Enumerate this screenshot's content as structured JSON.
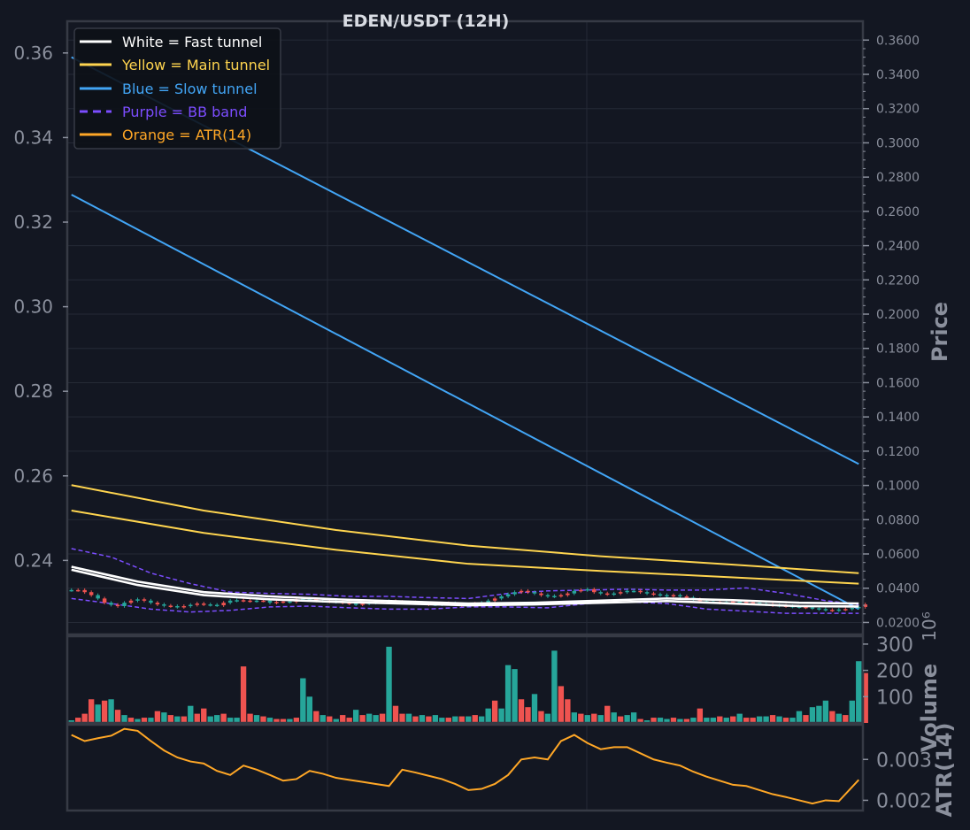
{
  "colors": {
    "background": "#131722",
    "panel_border": "#363a45",
    "grid": "#252a36",
    "tick_text": "#8a8f9c",
    "title_text": "#d9dce3",
    "up": "#26a69a",
    "down": "#ef5350",
    "fast": "#ffffff",
    "main": "#ffd54f",
    "slow": "#42a5f5",
    "bb": "#7c4dff",
    "atr": "#ffa726"
  },
  "chart_data": [
    {
      "type": "line",
      "panel": "price",
      "title": "EDEN/USDT (12H)",
      "ylabel": "Price",
      "left_ylim": [
        0.2225,
        0.3675
      ],
      "left_ticks": [
        "0.24",
        "0.26",
        "0.28",
        "0.30",
        "0.32",
        "0.34",
        "0.36"
      ],
      "right_ylim": [
        0.013,
        0.371
      ],
      "right_ticks": [
        "0.0200",
        "0.0400",
        "0.0600",
        "0.0800",
        "0.1000",
        "0.1200",
        "0.1400",
        "0.1600",
        "0.1800",
        "0.2000",
        "0.2200",
        "0.2400",
        "0.2600",
        "0.2800",
        "0.3000",
        "0.3200",
        "0.3400",
        "0.3600"
      ],
      "grid": true,
      "legend_position": "top-left",
      "legend": [
        {
          "label": "White = Fast tunnel",
          "color": "#ffffff",
          "style": "solid"
        },
        {
          "label": "Yellow = Main tunnel",
          "color": "#ffd54f",
          "style": "solid"
        },
        {
          "label": "Blue = Slow tunnel",
          "color": "#42a5f5",
          "style": "solid"
        },
        {
          "label": "Purple = BB band",
          "color": "#7c4dff",
          "style": "dashed"
        },
        {
          "label": "Orange = ATR(14)",
          "color": "#ffa726",
          "style": "solid"
        }
      ],
      "x_bars": [
        0,
        120
      ],
      "series": [
        {
          "group": "Fast tunnel",
          "color": "#ffffff",
          "x": [
            0,
            10,
            20,
            30,
            40,
            50,
            60,
            70,
            80,
            90,
            100,
            110,
            119
          ],
          "values": [
            0.2385,
            0.235,
            0.2325,
            0.2315,
            0.2308,
            0.2303,
            0.2298,
            0.23,
            0.2305,
            0.231,
            0.2306,
            0.23,
            0.2298
          ]
        },
        {
          "group": "Fast tunnel",
          "color": "#ffffff",
          "x": [
            0,
            10,
            20,
            30,
            40,
            50,
            60,
            70,
            80,
            90,
            100,
            110,
            119
          ],
          "values": [
            0.2378,
            0.2342,
            0.2318,
            0.2308,
            0.2302,
            0.2298,
            0.2294,
            0.2296,
            0.23,
            0.2304,
            0.2298,
            0.2292,
            0.2291
          ]
        },
        {
          "group": "Main tunnel",
          "color": "#ffd54f",
          "x": [
            0,
            20,
            40,
            60,
            80,
            100,
            119
          ],
          "values": [
            0.2578,
            0.2518,
            0.2472,
            0.2435,
            0.241,
            0.239,
            0.237
          ]
        },
        {
          "group": "Main tunnel",
          "color": "#ffd54f",
          "x": [
            0,
            20,
            40,
            60,
            80,
            100,
            119
          ],
          "values": [
            0.2518,
            0.2465,
            0.2425,
            0.2392,
            0.2375,
            0.236,
            0.2345
          ]
        },
        {
          "group": "Slow tunnel",
          "color": "#42a5f5",
          "x": [
            0,
            119
          ],
          "values": [
            0.359,
            0.2628
          ]
        },
        {
          "group": "Slow tunnel",
          "color": "#42a5f5",
          "x": [
            0,
            119
          ],
          "values": [
            0.3265,
            0.2285
          ]
        },
        {
          "group": "BB band",
          "color": "#7c4dff",
          "style": "dashed",
          "x": [
            0,
            6,
            12,
            18,
            24,
            30,
            36,
            42,
            48,
            54,
            60,
            66,
            72,
            78,
            84,
            90,
            96,
            102,
            108,
            114,
            119
          ],
          "values": [
            0.2428,
            0.2408,
            0.237,
            0.2345,
            0.2325,
            0.2322,
            0.232,
            0.2315,
            0.2315,
            0.2312,
            0.231,
            0.2322,
            0.2328,
            0.233,
            0.2332,
            0.233,
            0.233,
            0.2335,
            0.2322,
            0.2305,
            0.2295
          ]
        },
        {
          "group": "BB band",
          "color": "#7c4dff",
          "style": "dashed",
          "x": [
            0,
            6,
            12,
            18,
            24,
            30,
            36,
            42,
            48,
            54,
            60,
            66,
            72,
            78,
            84,
            90,
            96,
            102,
            108,
            114,
            119
          ],
          "values": [
            0.231,
            0.2298,
            0.2285,
            0.2278,
            0.2282,
            0.229,
            0.2292,
            0.2288,
            0.2285,
            0.2285,
            0.229,
            0.229,
            0.2288,
            0.2298,
            0.2302,
            0.2298,
            0.2285,
            0.228,
            0.2275,
            0.2275,
            0.2275
          ]
        }
      ],
      "candles": [
        0.233,
        0.233,
        0.2325,
        0.2318,
        0.231,
        0.23,
        0.2295,
        0.2292,
        0.23,
        0.2305,
        0.2308,
        0.2305,
        0.23,
        0.2296,
        0.2293,
        0.2292,
        0.229,
        0.2292,
        0.2295,
        0.2298,
        0.2296,
        0.2295,
        0.2294,
        0.23,
        0.2305,
        0.2306,
        0.2305,
        0.2304,
        0.2305,
        0.2305,
        0.23,
        0.2302,
        0.2303,
        0.2302,
        0.2308,
        0.231,
        0.2308,
        0.2305,
        0.2304,
        0.2303,
        0.2302,
        0.23,
        0.2298,
        0.2296,
        0.2298,
        0.23,
        0.2302,
        0.2303,
        0.2304,
        0.2302,
        0.23,
        0.2301,
        0.23,
        0.2298,
        0.2296,
        0.2296,
        0.2297,
        0.2299,
        0.2296,
        0.2294,
        0.2295,
        0.2298,
        0.23,
        0.2305,
        0.231,
        0.2315,
        0.232,
        0.2325,
        0.2328,
        0.2325,
        0.2322,
        0.2318,
        0.2315,
        0.2316,
        0.2318,
        0.2322,
        0.2328,
        0.233,
        0.2332,
        0.2325,
        0.2322,
        0.232,
        0.2322,
        0.2325,
        0.2328,
        0.2328,
        0.2325,
        0.2322,
        0.232,
        0.2318,
        0.2316,
        0.2318,
        0.2315,
        0.2312,
        0.2308,
        0.2304,
        0.2303,
        0.2302,
        0.23,
        0.2302,
        0.2303,
        0.2302,
        0.2301,
        0.23,
        0.2298,
        0.2296,
        0.2294,
        0.2293,
        0.2292,
        0.2291,
        0.229,
        0.2289,
        0.2287,
        0.2285,
        0.2283,
        0.2282,
        0.2284,
        0.2285,
        0.2288,
        0.229,
        0.2296
      ]
    },
    {
      "type": "bar",
      "panel": "volume",
      "ylabel": "Volume",
      "scale_label": "10⁶",
      "ylim": [
        0,
        330
      ],
      "ticks": [
        "100",
        "200",
        "300"
      ],
      "values": [
        10,
        20,
        35,
        90,
        70,
        85,
        90,
        50,
        30,
        20,
        15,
        20,
        20,
        45,
        40,
        30,
        25,
        25,
        65,
        35,
        55,
        25,
        30,
        35,
        20,
        20,
        215,
        35,
        30,
        25,
        20,
        15,
        15,
        15,
        20,
        170,
        100,
        45,
        30,
        25,
        15,
        30,
        20,
        50,
        30,
        35,
        30,
        35,
        290,
        65,
        35,
        35,
        25,
        30,
        25,
        30,
        20,
        20,
        25,
        25,
        25,
        30,
        25,
        55,
        85,
        55,
        220,
        205,
        90,
        60,
        110,
        45,
        35,
        275,
        140,
        90,
        40,
        35,
        30,
        35,
        30,
        65,
        40,
        25,
        30,
        40,
        15,
        10,
        20,
        20,
        15,
        20,
        15,
        15,
        20,
        55,
        20,
        20,
        25,
        20,
        25,
        35,
        20,
        20,
        25,
        25,
        30,
        25,
        20,
        20,
        45,
        30,
        60,
        65,
        85,
        45,
        35,
        30,
        85,
        235,
        190
      ],
      "up": [
        true,
        false,
        false,
        false,
        true,
        false,
        true,
        false,
        true,
        false,
        true,
        false,
        true,
        false,
        true,
        false,
        true,
        false,
        true,
        false,
        false,
        true,
        true,
        false,
        true,
        true,
        false,
        false,
        true,
        false,
        true,
        false,
        false,
        true,
        false,
        true,
        true,
        false,
        true,
        false,
        true,
        false,
        false,
        true,
        false,
        true,
        true,
        false,
        true,
        false,
        false,
        true,
        false,
        true,
        false,
        true,
        true,
        false,
        true,
        false,
        true,
        false,
        true,
        true,
        false,
        true,
        true,
        true,
        false,
        false,
        true,
        false,
        true,
        true,
        false,
        false,
        true,
        false,
        true,
        false,
        true,
        false,
        true,
        false,
        true,
        true,
        false,
        true,
        false,
        true,
        true,
        false,
        true,
        false,
        true,
        false,
        true,
        true,
        false,
        true,
        false,
        true,
        false,
        false,
        true,
        true,
        false,
        true,
        false,
        true,
        true,
        false,
        true,
        true,
        true,
        false,
        true,
        false,
        true,
        true,
        false
      ]
    },
    {
      "type": "line",
      "panel": "atr",
      "ylabel": "ATR(14)",
      "ylim": [
        0.00175,
        0.00385
      ],
      "ticks": [
        "0.002",
        "0.003"
      ],
      "x": [
        0,
        2,
        4,
        6,
        8,
        10,
        12,
        14,
        16,
        18,
        20,
        22,
        24,
        26,
        28,
        30,
        32,
        34,
        36,
        38,
        40,
        42,
        44,
        46,
        48,
        50,
        52,
        54,
        56,
        58,
        60,
        62,
        64,
        66,
        68,
        70,
        72,
        74,
        76,
        78,
        80,
        82,
        84,
        86,
        88,
        90,
        92,
        94,
        96,
        98,
        100,
        102,
        104,
        106,
        108,
        110,
        112,
        114,
        116,
        119
      ],
      "values": [
        0.0036,
        0.00345,
        0.00352,
        0.00358,
        0.00375,
        0.0037,
        0.00345,
        0.00322,
        0.00305,
        0.00295,
        0.0029,
        0.00272,
        0.00262,
        0.00285,
        0.00275,
        0.00262,
        0.00248,
        0.00252,
        0.00272,
        0.00265,
        0.00255,
        0.0025,
        0.00245,
        0.0024,
        0.00235,
        0.00275,
        0.00268,
        0.0026,
        0.00252,
        0.0024,
        0.00225,
        0.00228,
        0.0024,
        0.00262,
        0.003,
        0.00305,
        0.003,
        0.00345,
        0.0036,
        0.0034,
        0.00325,
        0.0033,
        0.0033,
        0.00315,
        0.003,
        0.00292,
        0.00285,
        0.0027,
        0.00258,
        0.00248,
        0.00238,
        0.00235,
        0.00225,
        0.00215,
        0.00208,
        0.002,
        0.00192,
        0.002,
        0.00198,
        0.0025
      ]
    }
  ]
}
